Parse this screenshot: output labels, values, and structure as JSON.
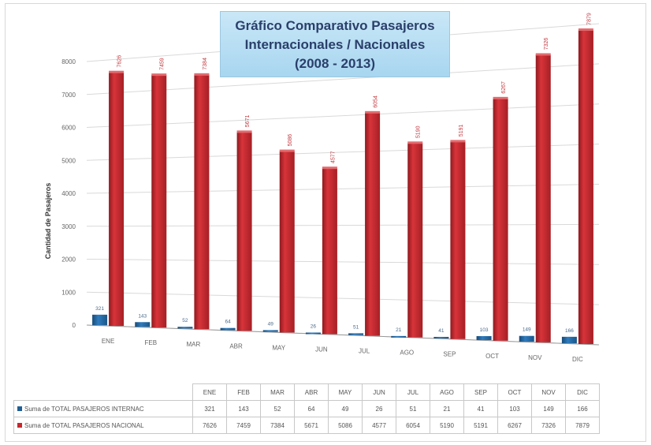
{
  "title": {
    "line1": "Gráfico Comparativo Pasajeros",
    "line2": "Internacionales / Nacionales",
    "line3": "(2008 - 2013)"
  },
  "colors": {
    "internacional": "#1f5f94",
    "nacional": "#c6282e"
  },
  "table": {
    "row1_label": "Suma de TOTAL PASAJEROS INTERNAC",
    "row2_label": "Suma de TOTAL PASAJEROS NACIONAL"
  },
  "chart_data": {
    "type": "bar",
    "title": "Gráfico Comparativo Pasajeros Internacionales / Nacionales (2008 - 2013)",
    "xlabel": "",
    "ylabel": "Cantidad de Pasajeros",
    "categories": [
      "ENE",
      "FEB",
      "MAR",
      "ABR",
      "MAY",
      "JUN",
      "JUL",
      "AGO",
      "SEP",
      "OCT",
      "NOV",
      "DIC"
    ],
    "y_ticks": [
      "0",
      "1000",
      "2000",
      "3000",
      "4000",
      "5000",
      "6000",
      "7000",
      "8000"
    ],
    "ylim": [
      0,
      8000
    ],
    "grid": true,
    "legend": "table-below",
    "series": [
      {
        "name": "Suma de TOTAL PASAJEROS INTERNAC",
        "values": [
          321,
          143,
          52,
          64,
          49,
          26,
          51,
          21,
          41,
          103,
          149,
          166
        ]
      },
      {
        "name": "Suma de TOTAL PASAJEROS NACIONAL",
        "values": [
          7626,
          7459,
          7384,
          5671,
          5086,
          4577,
          6054,
          5190,
          5191,
          6267,
          7326,
          7879
        ]
      }
    ]
  }
}
